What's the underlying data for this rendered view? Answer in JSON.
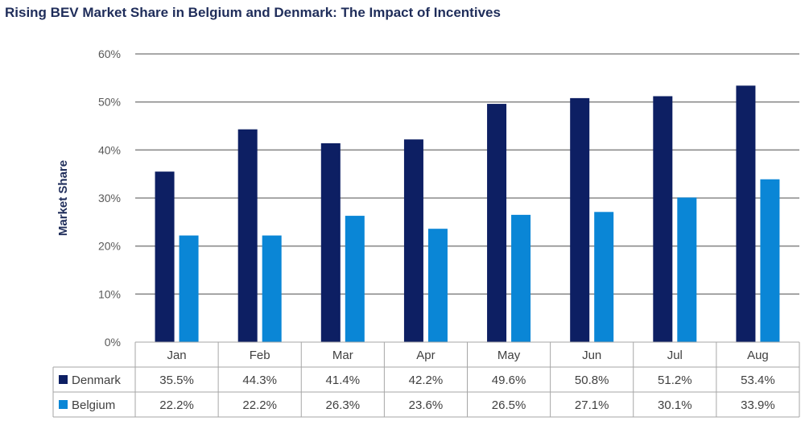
{
  "chart_data": {
    "type": "bar",
    "title": "Rising BEV Market Share in Belgium and Denmark: The Impact of Incentives",
    "xlabel": "",
    "ylabel": "Market Share",
    "ylim": [
      0,
      60
    ],
    "y_ticks": [
      "0%",
      "10%",
      "20%",
      "30%",
      "40%",
      "50%",
      "60%"
    ],
    "categories": [
      "Jan",
      "Feb",
      "Mar",
      "Apr",
      "May",
      "Jun",
      "Jul",
      "Aug"
    ],
    "grid": true,
    "legend": "data-table",
    "series": [
      {
        "name": "Denmark",
        "color": "#0d1f63",
        "values": [
          35.5,
          44.3,
          41.4,
          42.2,
          49.6,
          50.8,
          51.2,
          53.4
        ],
        "labels": [
          "35.5%",
          "44.3%",
          "41.4%",
          "42.2%",
          "49.6%",
          "50.8%",
          "51.2%",
          "53.4%"
        ]
      },
      {
        "name": "Belgium",
        "color": "#0a86d6",
        "values": [
          22.2,
          22.2,
          26.3,
          23.6,
          26.5,
          27.1,
          30.1,
          33.9
        ],
        "labels": [
          "22.2%",
          "22.2%",
          "26.3%",
          "23.6%",
          "26.5%",
          "27.1%",
          "30.1%",
          "33.9%"
        ]
      }
    ]
  }
}
